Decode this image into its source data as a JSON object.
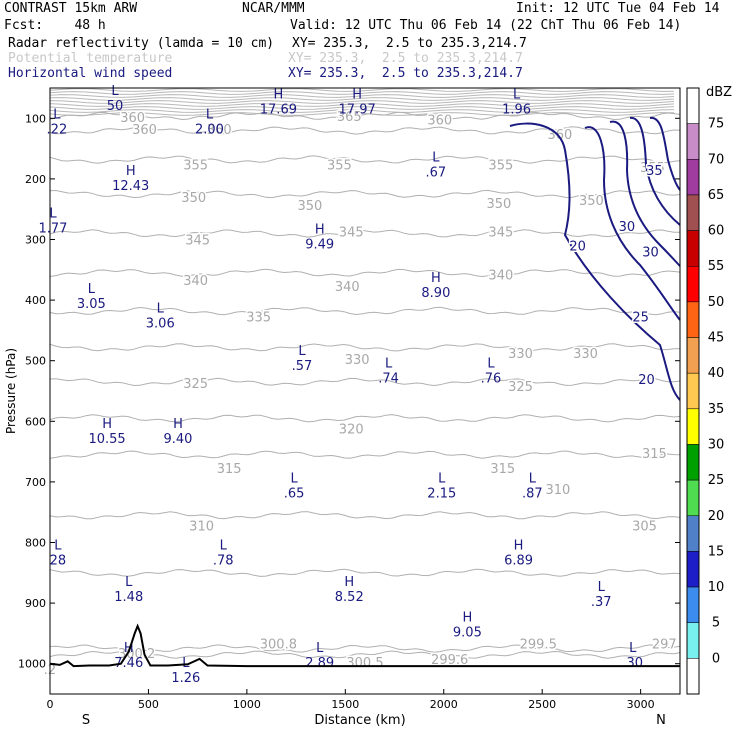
{
  "header": {
    "model": "CONTRAST 15km ARW",
    "org": "NCAR/MMM",
    "init": "Init: 12 UTC Tue 04 Feb 14",
    "fcst": "Fcst:    48 h",
    "valid": "Valid: 12 UTC Thu 06 Feb 14 (22 ChT Thu 06 Feb 14)",
    "fields": [
      {
        "name": "Radar reflectivity (lamda = 10 cm)",
        "xy": "XY= 235.3,  2.5 to 235.3,214.7",
        "color": "#000000"
      },
      {
        "name": "Potential temperature",
        "xy": "XY= 235.3,  2.5 to 235.3,214.7",
        "color": "#c0c0c0"
      },
      {
        "name": "Horizontal wind speed",
        "xy": "XY= 235.3,  2.5 to 235.3,214.7",
        "color": "#1a1a80"
      }
    ]
  },
  "chart_data": {
    "type": "contour",
    "xlabel": "Distance (km)",
    "ylabel": "Pressure (hPa)",
    "xlim": [
      0,
      3200
    ],
    "ylim": [
      1050,
      50
    ],
    "x_ticks": [
      0,
      500,
      1000,
      1500,
      2000,
      2500,
      3000
    ],
    "y_ticks": [
      100,
      200,
      300,
      400,
      500,
      600,
      700,
      800,
      900,
      1000
    ],
    "x_end_labels": [
      "S",
      "N"
    ],
    "colorbar": {
      "unit": "dBZ",
      "levels": [
        "75",
        "70",
        "65",
        "60",
        "55",
        "50",
        "45",
        "40",
        "35",
        "30",
        "25",
        "20",
        "15",
        "10",
        "5",
        "0"
      ],
      "colors": [
        "#ffffff",
        "#c88cc8",
        "#a03ca0",
        "#a05050",
        "#c80000",
        "#ff0000",
        "#ff6414",
        "#f0a050",
        "#ffc850",
        "#ffff00",
        "#00a000",
        "#50dc50",
        "#5080c8",
        "#1e1ec8",
        "#3c8cf0",
        "#78f0f0",
        "#ffffff"
      ]
    },
    "theta_contours": [
      {
        "value": 297,
        "p": 985
      },
      {
        "value": 299.5,
        "p": 975
      },
      {
        "value": 305,
        "p": 850
      },
      {
        "value": 310,
        "p": 755
      },
      {
        "value": 315,
        "p": 655
      },
      {
        "value": 320,
        "p": 595
      },
      {
        "value": 325,
        "p": 535
      },
      {
        "value": 330,
        "p": 478
      },
      {
        "value": 335,
        "p": 418
      },
      {
        "value": 340,
        "p": 355
      },
      {
        "value": 345,
        "p": 290
      },
      {
        "value": 350,
        "p": 225
      },
      {
        "value": 355,
        "p": 168
      },
      {
        "value": 360,
        "p": 120
      },
      {
        "value": 365,
        "p": 96
      }
    ],
    "theta_labels": [
      {
        "text": "360",
        "x": 420,
        "p": 98
      },
      {
        "value_note": "",
        "text": "360",
        "x": 480,
        "p": 118
      },
      {
        "text": "360",
        "x": 860,
        "p": 118
      },
      {
        "text": "365",
        "x": 1520,
        "p": 96
      },
      {
        "text": "360",
        "x": 1980,
        "p": 102
      },
      {
        "text": "360",
        "x": 2590,
        "p": 126
      },
      {
        "text": "355",
        "x": 740,
        "p": 176
      },
      {
        "text": "355",
        "x": 1470,
        "p": 176
      },
      {
        "text": "355",
        "x": 2290,
        "p": 176
      },
      {
        "text": "355",
        "x": 3060,
        "p": 180
      },
      {
        "text": "350",
        "x": 730,
        "p": 230
      },
      {
        "text": "350",
        "x": 1320,
        "p": 243
      },
      {
        "text": "350",
        "x": 2280,
        "p": 240
      },
      {
        "text": "350",
        "x": 2750,
        "p": 235
      },
      {
        "text": "345",
        "x": 750,
        "p": 300
      },
      {
        "text": "345",
        "x": 1530,
        "p": 287
      },
      {
        "text": "345",
        "x": 2290,
        "p": 287
      },
      {
        "text": "340",
        "x": 740,
        "p": 367
      },
      {
        "text": "340",
        "x": 1510,
        "p": 377
      },
      {
        "text": "340",
        "x": 2290,
        "p": 358
      },
      {
        "text": "335",
        "x": 1060,
        "p": 427
      },
      {
        "text": "330",
        "x": 1560,
        "p": 497
      },
      {
        "text": "330",
        "x": 2390,
        "p": 487
      },
      {
        "text": "330",
        "x": 2720,
        "p": 487
      },
      {
        "text": "325",
        "x": 740,
        "p": 537
      },
      {
        "text": "325",
        "x": 2390,
        "p": 542
      },
      {
        "text": "320",
        "x": 1530,
        "p": 612
      },
      {
        "text": "315",
        "x": 910,
        "p": 677
      },
      {
        "text": "315",
        "x": 2300,
        "p": 677
      },
      {
        "text": "315",
        "x": 3070,
        "p": 652
      },
      {
        "text": "310",
        "x": 2580,
        "p": 712
      },
      {
        "text": "310",
        "x": 770,
        "p": 772
      },
      {
        "text": "305",
        "x": 3020,
        "p": 772
      },
      {
        "text": "300.2",
        "x": 440,
        "p": 982
      },
      {
        "text": "300.8",
        "x": 1160,
        "p": 967
      },
      {
        "text": "300.5",
        "x": 1600,
        "p": 997
      },
      {
        "text": "299.6",
        "x": 2030,
        "p": 992
      },
      {
        "text": "299.5",
        "x": 2480,
        "p": 967
      },
      {
        "text": "297",
        "x": 3120,
        "p": 967
      },
      {
        "text": ".2",
        "x": 0,
        "p": 1009
      }
    ],
    "wind_speed_contours": [
      20,
      25,
      30,
      35,
      40
    ],
    "wind_labels": [
      {
        "text": "20",
        "x": 2680,
        "p": 310
      },
      {
        "text": "20",
        "x": 3030,
        "p": 530
      },
      {
        "text": "25",
        "x": 3000,
        "p": 427
      },
      {
        "text": "30",
        "x": 2930,
        "p": 278
      },
      {
        "text": "30",
        "x": 3050,
        "p": 320
      },
      {
        "text": "35",
        "x": 3070,
        "p": 185
      }
    ],
    "extrema": [
      {
        "kind": "L",
        "value": "50",
        "x": 330,
        "p": 68
      },
      {
        "kind": "L",
        "value": "2.00",
        "x": 810,
        "p": 107
      },
      {
        "kind": "H",
        "value": "17.69",
        "x": 1160,
        "p": 74
      },
      {
        "kind": "H",
        "value": "17.97",
        "x": 1560,
        "p": 74
      },
      {
        "kind": "L",
        "value": "1.96",
        "x": 2370,
        "p": 74
      },
      {
        "kind": "L",
        "value": ".22",
        "x": 35,
        "p": 107
      },
      {
        "kind": "L",
        "value": ".67",
        "x": 1960,
        "p": 178
      },
      {
        "kind": "H",
        "value": "12.43",
        "x": 410,
        "p": 200
      },
      {
        "kind": "L",
        "value": "1.77",
        "x": 15,
        "p": 270
      },
      {
        "kind": "H",
        "value": "9.49",
        "x": 1370,
        "p": 297
      },
      {
        "kind": "H",
        "value": "8.90",
        "x": 1960,
        "p": 377
      },
      {
        "kind": "L",
        "value": "3.05",
        "x": 210,
        "p": 395
      },
      {
        "kind": "L",
        "value": "3.06",
        "x": 560,
        "p": 427
      },
      {
        "kind": "L",
        "value": ".57",
        "x": 1280,
        "p": 497
      },
      {
        "kind": "L",
        "value": ".74",
        "x": 1720,
        "p": 518
      },
      {
        "kind": "L",
        "value": ".76",
        "x": 2240,
        "p": 518
      },
      {
        "kind": "H",
        "value": "10.55",
        "x": 290,
        "p": 618
      },
      {
        "kind": "H",
        "value": "9.40",
        "x": 650,
        "p": 618
      },
      {
        "kind": "L",
        "value": ".65",
        "x": 1240,
        "p": 708
      },
      {
        "kind": "L",
        "value": "2.15",
        "x": 1990,
        "p": 708
      },
      {
        "kind": "L",
        "value": ".87",
        "x": 2450,
        "p": 708
      },
      {
        "kind": "L",
        "value": "28",
        "x": 40,
        "p": 818
      },
      {
        "kind": "L",
        "value": ".78",
        "x": 880,
        "p": 818
      },
      {
        "kind": "H",
        "value": "6.89",
        "x": 2380,
        "p": 818
      },
      {
        "kind": "L",
        "value": "1.48",
        "x": 400,
        "p": 878
      },
      {
        "kind": "H",
        "value": "8.52",
        "x": 1520,
        "p": 878
      },
      {
        "kind": "L",
        "value": ".37",
        "x": 2800,
        "p": 887
      },
      {
        "kind": "H",
        "value": "9.05",
        "x": 2120,
        "p": 937
      },
      {
        "kind": "H",
        "value": "7.46",
        "x": 400,
        "p": 987
      },
      {
        "kind": "L",
        "value": "2.89",
        "x": 1370,
        "p": 987
      },
      {
        "kind": "L",
        "value": ".30",
        "x": 2960,
        "p": 987
      },
      {
        "kind": "L",
        "value": "1.26",
        "x": 690,
        "p": 1012
      }
    ],
    "terrain": [
      [
        0,
        1000
      ],
      [
        50,
        1002
      ],
      [
        90,
        996
      ],
      [
        120,
        1004
      ],
      [
        200,
        1003
      ],
      [
        300,
        1003
      ],
      [
        360,
        1000
      ],
      [
        400,
        980
      ],
      [
        430,
        950
      ],
      [
        445,
        938
      ],
      [
        460,
        950
      ],
      [
        480,
        985
      ],
      [
        510,
        1003
      ],
      [
        600,
        1003
      ],
      [
        700,
        1001
      ],
      [
        760,
        992
      ],
      [
        800,
        1003
      ],
      [
        1000,
        1004
      ],
      [
        1500,
        1004
      ],
      [
        2000,
        1004
      ],
      [
        2500,
        1004
      ],
      [
        3000,
        1004
      ],
      [
        3200,
        1004
      ]
    ]
  }
}
